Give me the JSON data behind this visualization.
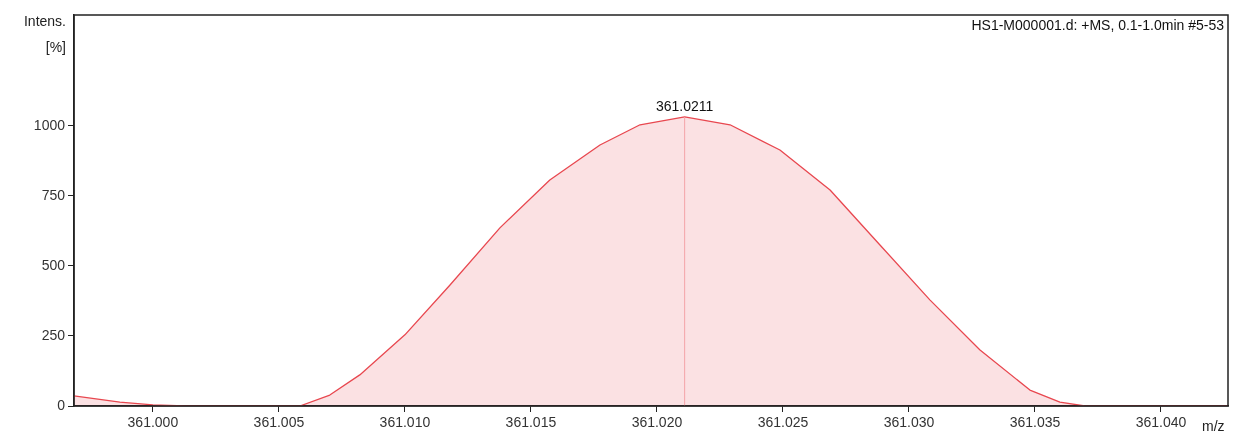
{
  "chart_data": {
    "type": "area",
    "title": "HS1-M000001.d: +MS, 0.1-1.0min #5-53",
    "xlabel": "m/z",
    "ylabel": "Intens. [%]",
    "x": [
      360.99687,
      360.99869,
      361.0,
      361.00127,
      361.00583,
      361.00702,
      361.00821,
      361.01,
      361.01179,
      361.01377,
      361.01575,
      361.01774,
      361.01933,
      361.0211,
      361.0229,
      361.02488,
      361.02687,
      361.02885,
      361.03083,
      361.03282,
      361.0348,
      361.03599,
      361.03698,
      361.04266
    ],
    "series": [
      {
        "color": "#e8474f",
        "values": [
          36,
          14,
          4,
          0,
          0,
          39,
          111,
          254,
          432,
          636,
          807,
          932,
          1004,
          1032,
          1004,
          914,
          771,
          575,
          379,
          200,
          57,
          14,
          0,
          0
        ]
      }
    ],
    "annotations": [
      {
        "text": "361.0211",
        "x": 361.0211,
        "y": 1032
      }
    ],
    "ref_lines": [
      {
        "axis": "x",
        "value": 361.0211,
        "color": "#f4a3a8"
      }
    ],
    "xlim": [
      360.99687,
      361.04266
    ],
    "ylim": [
      0,
      1396
    ],
    "xticks": [
      {
        "value": 361.0,
        "label": "361.000"
      },
      {
        "value": 361.005,
        "label": "361.005"
      },
      {
        "value": 361.01,
        "label": "361.010"
      },
      {
        "value": 361.015,
        "label": "361.015"
      },
      {
        "value": 361.02,
        "label": "361.020"
      },
      {
        "value": 361.025,
        "label": "361.025"
      },
      {
        "value": 361.03,
        "label": "361.030"
      },
      {
        "value": 361.035,
        "label": "361.035"
      },
      {
        "value": 361.04,
        "label": "361.040"
      }
    ],
    "yticks": [
      0,
      250,
      500,
      750,
      1000
    ],
    "grid": false,
    "legend": false
  }
}
